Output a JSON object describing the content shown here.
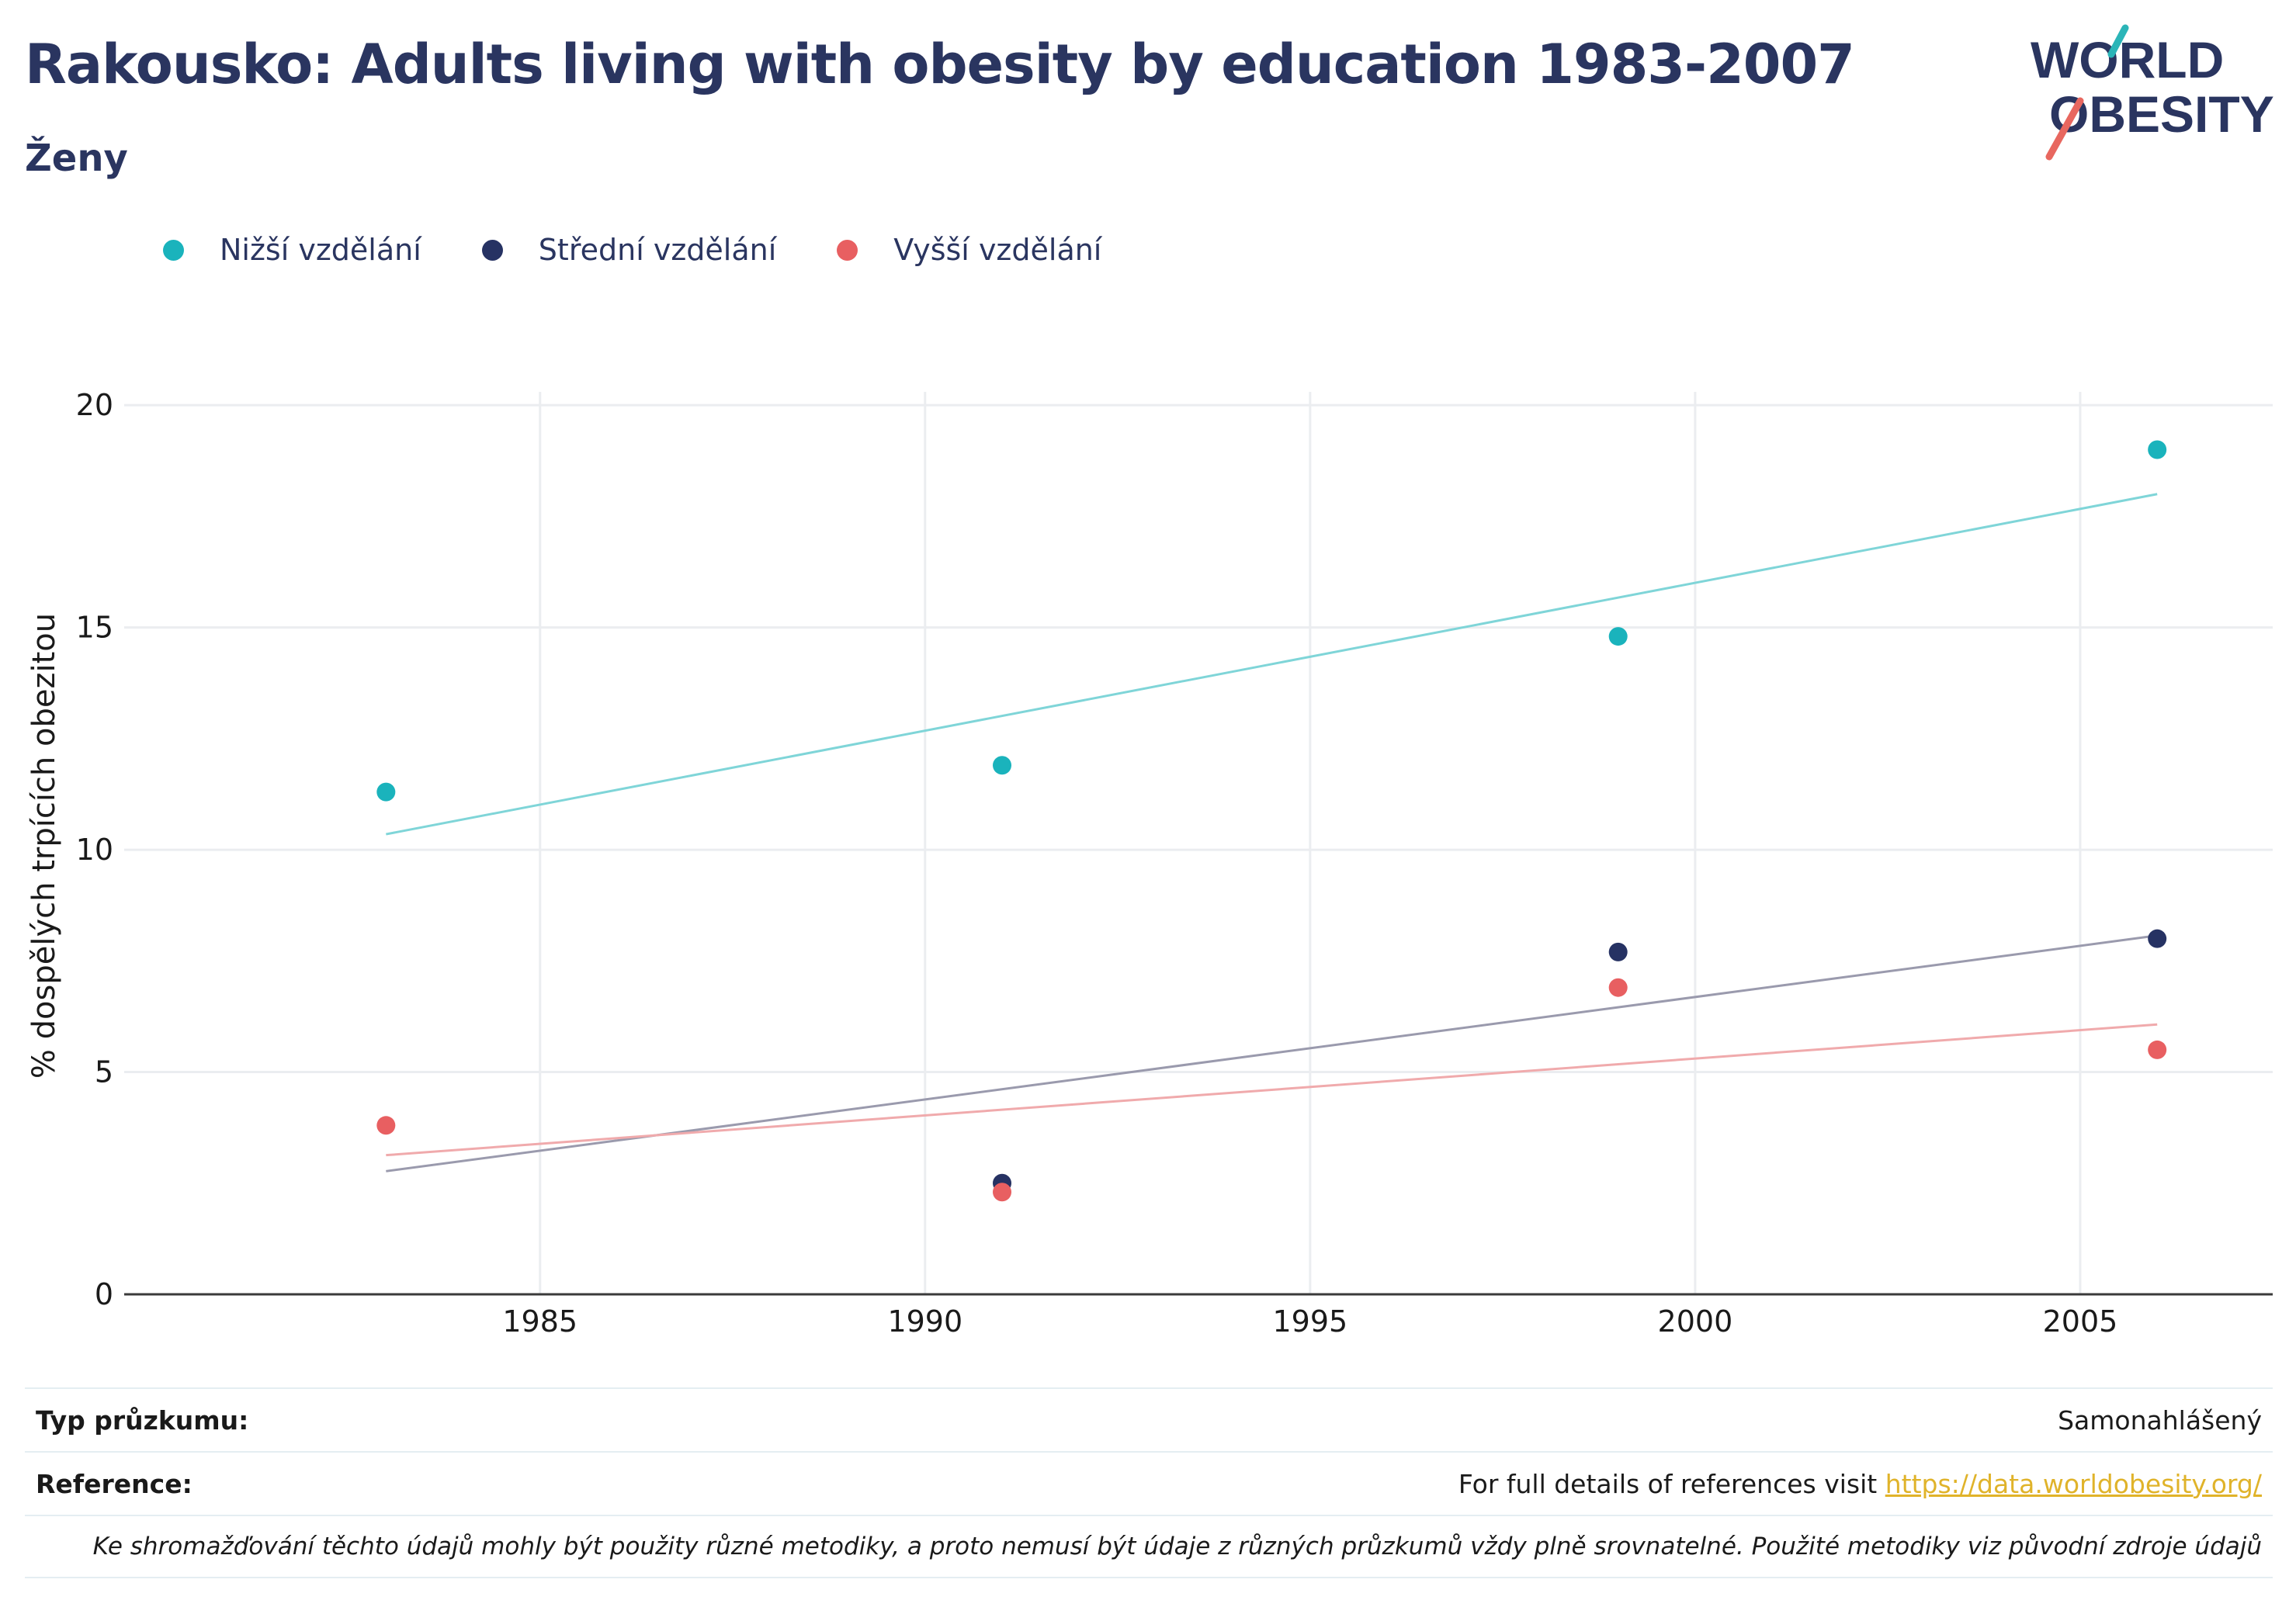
{
  "header": {
    "title": "Rakousko: Adults living with obesity by education 1983-2007",
    "subtitle": "Ženy"
  },
  "logo": {
    "line1": "WORLD",
    "line2": "OBESITY",
    "colors": [
      "#2a3560",
      "#2bb5b8",
      "#e8675f"
    ]
  },
  "chart_data": {
    "type": "scatter",
    "title": "Rakousko: Adults living with obesity by education 1983-2007",
    "subtitle": "Ženy",
    "ylabel": "% dospělých trpících obezitou",
    "xlabel": "",
    "xlim": [
      1979.6,
      2007.5
    ],
    "ylim": [
      0,
      20.3
    ],
    "x_ticks": [
      1985,
      1990,
      1995,
      2000,
      2005
    ],
    "y_ticks": [
      0,
      5,
      10,
      15,
      20
    ],
    "grid": true,
    "legend_position": "top-left",
    "trendlines": true,
    "series": [
      {
        "name": "Nižší vzdělání",
        "color": "#1ab3bc",
        "trend_color": "#7fd5d8",
        "points": [
          [
            1983,
            11.3
          ],
          [
            1991,
            11.9
          ],
          [
            1999,
            14.8
          ],
          [
            2006,
            19.0
          ]
        ],
        "trend": [
          [
            1983,
            10.35
          ],
          [
            2006,
            18.0
          ]
        ]
      },
      {
        "name": "Střední vzdělání",
        "color": "#263263",
        "trend_color": "#9a9aad",
        "points": [
          [
            1991,
            2.5
          ],
          [
            1999,
            7.7
          ],
          [
            2006,
            8.0
          ]
        ],
        "trend": [
          [
            1983,
            2.77
          ],
          [
            2006,
            8.07
          ]
        ]
      },
      {
        "name": "Vyšší vzdělání",
        "color": "#e85f61",
        "trend_color": "#f0aaac",
        "points": [
          [
            1983,
            3.8
          ],
          [
            1991,
            2.3
          ],
          [
            1999,
            6.9
          ],
          [
            2006,
            5.5
          ]
        ],
        "trend": [
          [
            1983,
            3.13
          ],
          [
            2006,
            6.07
          ]
        ]
      }
    ]
  },
  "footer": {
    "survey_label": "Typ průzkumu:",
    "survey_value": "Samonahlášený",
    "reference_label": "Reference:",
    "reference_text": "For full details of references visit ",
    "reference_link": "https://data.worldobesity.org/",
    "note": "Ke shromažďování těchto údajů mohly být použity různé metodiky, a proto nemusí být údaje z různých průzkumů vždy plně srovnatelné. Použité metodiky viz původní zdroje údajů"
  }
}
